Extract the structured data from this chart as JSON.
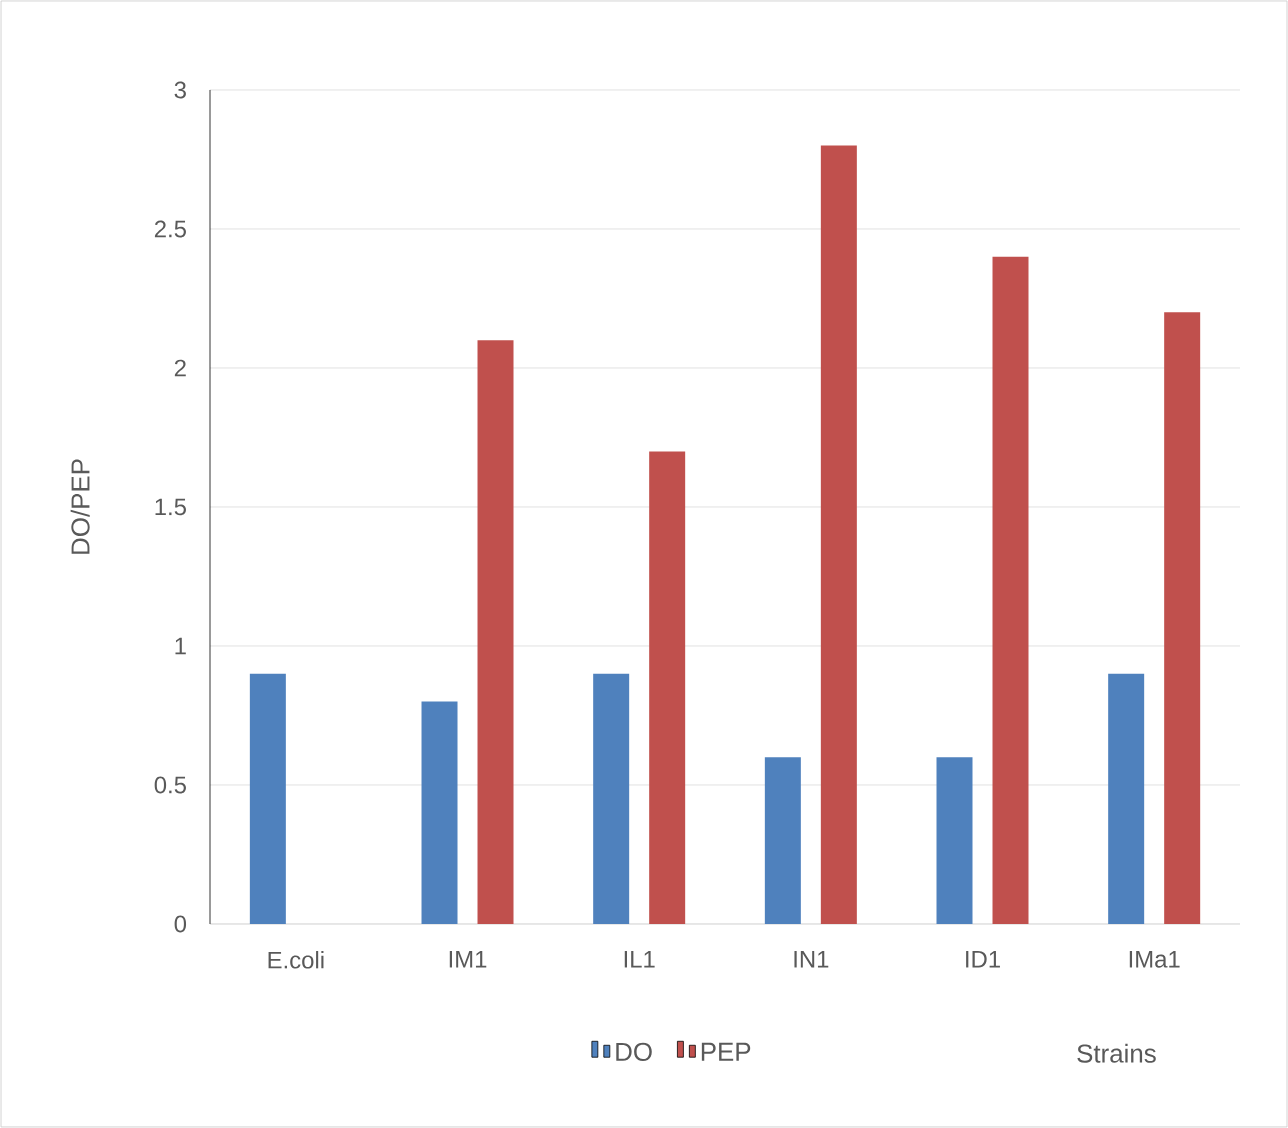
{
  "chart_data": {
    "type": "bar",
    "xlabel": "Strains",
    "ylabel": "DO/PEP",
    "categories": [
      "E.coli",
      "IM1",
      "IL1",
      "IN1",
      "ID1",
      "IMa1"
    ],
    "series": [
      {
        "name": "DO",
        "color": "#4f81bd",
        "values": [
          0.9,
          0.8,
          0.9,
          0.6,
          0.6,
          0.9
        ]
      },
      {
        "name": "PEP",
        "color": "#c0504d",
        "values": [
          null,
          2.1,
          1.7,
          2.8,
          2.4,
          2.2
        ]
      }
    ],
    "ylim": [
      0,
      3
    ],
    "yticks": [
      0,
      0.5,
      1,
      1.5,
      2,
      2.5,
      3
    ],
    "grid": "y",
    "legend": "bottom"
  }
}
